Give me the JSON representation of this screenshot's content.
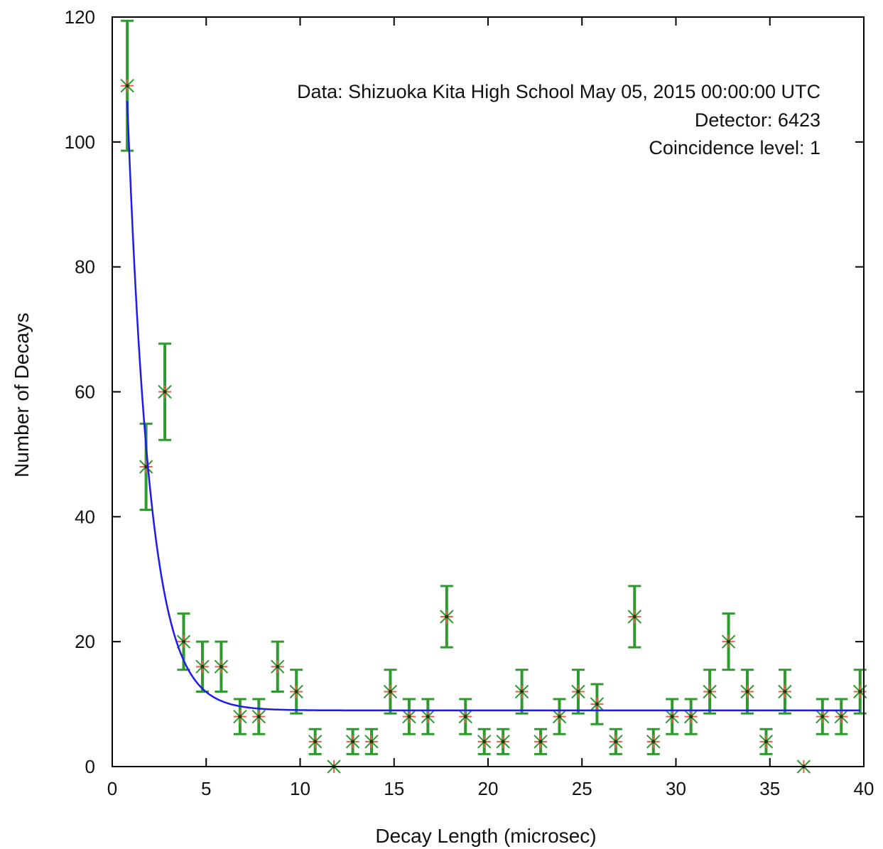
{
  "chart_data": {
    "type": "scatter",
    "xlabel": "Decay Length (microsec)",
    "ylabel": "Number of Decays",
    "xlim": [
      0,
      40
    ],
    "ylim": [
      0,
      120
    ],
    "xticks": [
      0,
      5,
      10,
      15,
      20,
      25,
      30,
      35,
      40
    ],
    "yticks": [
      0,
      20,
      40,
      60,
      80,
      100,
      120
    ],
    "grid": false,
    "annotations": [
      "Data: Shizuoka Kita High School May 05, 2015 00:00:00 UTC",
      "Detector: 6423",
      "Coincidence level: 1"
    ],
    "series": [
      {
        "type": "errorbar",
        "x": [
          0.8,
          1.8,
          2.8,
          3.8,
          4.8,
          5.8,
          6.8,
          7.8,
          8.8,
          9.8,
          10.8,
          11.8,
          12.8,
          13.8,
          14.8,
          15.8,
          16.8,
          17.8,
          18.8,
          19.8,
          20.8,
          21.8,
          22.8,
          23.8,
          24.8,
          25.8,
          26.8,
          27.8,
          28.8,
          29.8,
          30.8,
          31.8,
          32.8,
          33.8,
          34.8,
          35.8,
          36.8,
          37.8,
          38.8,
          39.8
        ],
        "y": [
          109,
          48,
          60,
          20,
          16,
          16,
          8,
          8,
          16,
          12,
          4,
          0,
          4,
          4,
          12,
          8,
          8,
          24,
          8,
          4,
          4,
          12,
          4,
          8,
          12,
          10,
          4,
          24,
          4,
          8,
          8,
          12,
          20,
          12,
          4,
          12,
          0,
          8,
          8,
          12
        ],
        "yerr": [
          10.4,
          6.9,
          7.7,
          4.5,
          4,
          4,
          2.8,
          2.8,
          4,
          3.5,
          2,
          0,
          2,
          2,
          3.5,
          2.8,
          2.8,
          4.9,
          2.8,
          2,
          2,
          3.5,
          2,
          2.8,
          3.5,
          3.2,
          2,
          4.9,
          2,
          2.8,
          2.8,
          3.5,
          4.5,
          3.5,
          2,
          3.5,
          0,
          2.8,
          2.8,
          3.5
        ],
        "bar_color": "#2e9a2e",
        "marker_color": "#e8604c"
      },
      {
        "type": "line",
        "function": "exponential fit",
        "x_start": 0.8,
        "x_end": 39.8,
        "params": {
          "A": 190,
          "tau": 1.2,
          "C": 9
        },
        "color": "#1c1cf0"
      }
    ]
  }
}
